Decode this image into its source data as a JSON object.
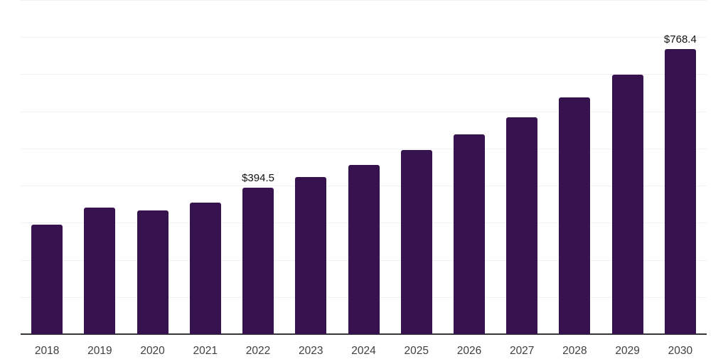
{
  "chart_data": {
    "type": "bar",
    "title": "",
    "xlabel": "",
    "ylabel": "",
    "categories": [
      "2018",
      "2019",
      "2020",
      "2021",
      "2022",
      "2023",
      "2024",
      "2025",
      "2026",
      "2027",
      "2028",
      "2029",
      "2030"
    ],
    "values": [
      295,
      340,
      333,
      355,
      394.5,
      423,
      456.5,
      496.5,
      538,
      584,
      637,
      699,
      768.4
    ],
    "value_labels": [
      {
        "category": "2022",
        "text": "$394.5"
      },
      {
        "category": "2030",
        "text": "$768.4"
      }
    ],
    "ylim": [
      0,
      900
    ],
    "grid_step": 100,
    "grid": "horizontal",
    "legend_position": "none",
    "bar_color": "#36124E",
    "grid_color": "#f1f1f3",
    "axis_line_color": "#35353a",
    "label_color": "#111111",
    "tick_label_color": "#3f3f3f",
    "background_color": "#ffffff"
  }
}
